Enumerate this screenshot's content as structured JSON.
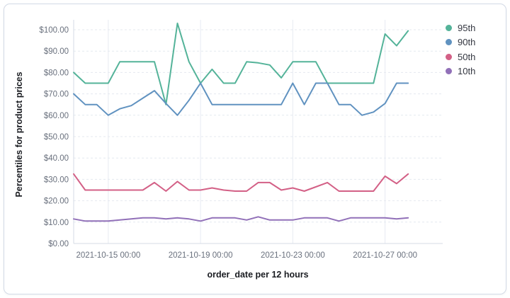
{
  "panel": {
    "background": "#ffffff",
    "border_color": "#D3DAE6"
  },
  "axes": {
    "y_title": "Percentiles for product prices",
    "x_title": "order_date per 12 hours"
  },
  "legend": {
    "position": "right",
    "items": [
      {
        "label": "95th",
        "color": "#54B399"
      },
      {
        "label": "90th",
        "color": "#6092C0"
      },
      {
        "label": "50th",
        "color": "#D36086"
      },
      {
        "label": "10th",
        "color": "#9170B8"
      }
    ]
  },
  "chart_data": {
    "type": "line",
    "title": "",
    "xlabel": "order_date per 12 hours",
    "ylabel": "Percentiles for product prices",
    "interval": "12 hours",
    "ylim": [
      0,
      105
    ],
    "grid": true,
    "legend_position": "right",
    "x": [
      "2021-10-13 12:00",
      "2021-10-14 00:00",
      "2021-10-14 12:00",
      "2021-10-15 00:00",
      "2021-10-15 12:00",
      "2021-10-16 00:00",
      "2021-10-16 12:00",
      "2021-10-17 00:00",
      "2021-10-17 12:00",
      "2021-10-18 00:00",
      "2021-10-18 12:00",
      "2021-10-19 00:00",
      "2021-10-19 12:00",
      "2021-10-20 00:00",
      "2021-10-20 12:00",
      "2021-10-21 00:00",
      "2021-10-21 12:00",
      "2021-10-22 00:00",
      "2021-10-22 12:00",
      "2021-10-23 00:00",
      "2021-10-23 12:00",
      "2021-10-24 00:00",
      "2021-10-24 12:00",
      "2021-10-25 00:00",
      "2021-10-25 12:00",
      "2021-10-26 00:00",
      "2021-10-26 12:00",
      "2021-10-27 00:00",
      "2021-10-27 12:00",
      "2021-10-28 00:00"
    ],
    "series": [
      {
        "name": "95th",
        "color": "#54B399",
        "values": [
          80,
          75,
          75,
          75,
          85,
          85,
          85,
          85,
          65,
          103,
          85,
          75,
          81.5,
          75,
          75,
          85,
          84.5,
          83.5,
          77.5,
          85,
          85,
          85,
          75,
          75,
          75,
          75,
          75,
          98,
          92.5,
          99.5
        ]
      },
      {
        "name": "90th",
        "color": "#6092C0",
        "values": [
          70,
          65,
          65,
          60,
          63,
          64.5,
          68,
          71.5,
          65.5,
          60,
          67,
          75,
          65,
          65,
          65,
          65,
          65,
          65,
          65,
          75,
          65,
          75,
          75,
          65,
          65,
          60,
          61.5,
          65.5,
          75,
          75
        ]
      },
      {
        "name": "50th",
        "color": "#D36086",
        "values": [
          32.5,
          25,
          25,
          25,
          25,
          25,
          25,
          28.5,
          24.5,
          29,
          25,
          25,
          26,
          25,
          24.5,
          24.5,
          28.5,
          28.5,
          25,
          26,
          24.5,
          26.5,
          28.5,
          24.5,
          24.5,
          24.5,
          24.5,
          31.5,
          28,
          32.5
        ]
      },
      {
        "name": "10th",
        "color": "#9170B8",
        "values": [
          11.5,
          10.5,
          10.5,
          10.5,
          11,
          11.5,
          12,
          12,
          11.5,
          12,
          11.5,
          10.5,
          12,
          12,
          12,
          11,
          12.5,
          11,
          11,
          11,
          12,
          12,
          12,
          10.5,
          12,
          12,
          12,
          12,
          11.5,
          12
        ]
      }
    ],
    "y_ticks": [
      {
        "value": 0,
        "label": "$0.00"
      },
      {
        "value": 10,
        "label": "$10.00"
      },
      {
        "value": 20,
        "label": "$20.00"
      },
      {
        "value": 30,
        "label": "$30.00"
      },
      {
        "value": 40,
        "label": "$40.00"
      },
      {
        "value": 50,
        "label": "$50.00"
      },
      {
        "value": 60,
        "label": "$60.00"
      },
      {
        "value": 70,
        "label": "$70.00"
      },
      {
        "value": 80,
        "label": "$80.00"
      },
      {
        "value": 90,
        "label": "$90.00"
      },
      {
        "value": 100,
        "label": "$100.00"
      }
    ],
    "x_ticks": [
      {
        "label": "2021-10-15 00:00",
        "step": 3
      },
      {
        "label": "2021-10-19 00:00",
        "step": 11
      },
      {
        "label": "2021-10-23 00:00",
        "step": 19
      },
      {
        "label": "2021-10-27 00:00",
        "step": 27
      }
    ],
    "x_domain_steps": 32
  }
}
